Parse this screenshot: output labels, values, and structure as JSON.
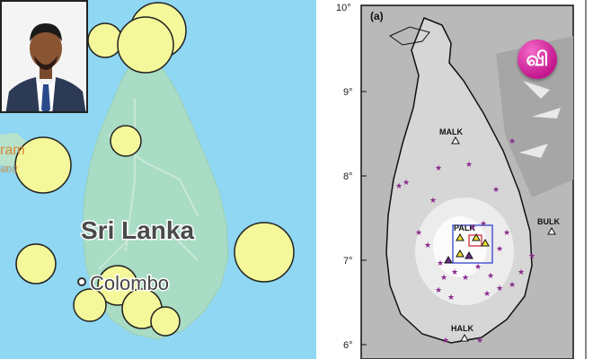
{
  "left_map": {
    "country_label": "Sri Lanka",
    "city_label": "Colombo",
    "partial_label_top": "ram",
    "partial_label_bottom": "ரை"
  },
  "right_map": {
    "panel_label": "(a)",
    "lat_ticks": [
      "10°",
      "9°",
      "8°",
      "7°",
      "6°"
    ],
    "stations": [
      "MALK",
      "PALK",
      "BULK",
      "HALK"
    ]
  },
  "logo": {
    "glyph": "வி"
  },
  "colors": {
    "ocean": "#8fd7f2",
    "land": "#a9dcc4",
    "circle_fill": "#f4f79a",
    "star": "#8b2a8f",
    "logo": "#d21b9a"
  }
}
